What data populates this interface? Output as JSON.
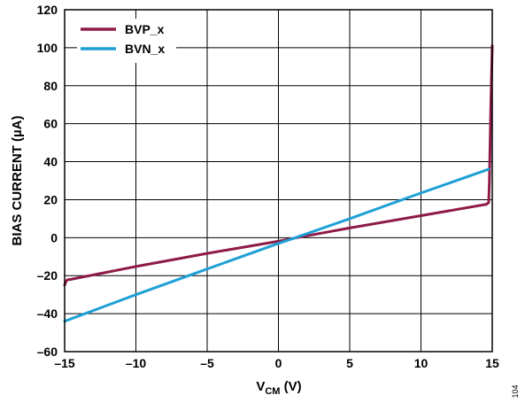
{
  "chart_data": {
    "type": "line",
    "xlabel_main": "V",
    "xlabel_sub": "CM",
    "xlabel_unit": " (V)",
    "ylabel": "BIAS CURRENT (µA)",
    "xlim": [
      -15,
      15
    ],
    "ylim": [
      -60,
      120
    ],
    "xticks": [
      -15,
      -10,
      -5,
      0,
      5,
      10,
      15
    ],
    "xtick_labels": [
      "–15",
      "–10",
      "–5",
      "0",
      "5",
      "10",
      "15"
    ],
    "yticks": [
      -60,
      -40,
      -20,
      0,
      20,
      40,
      60,
      80,
      100,
      120
    ],
    "ytick_labels": [
      "–60",
      "–40",
      "–20",
      "0",
      "20",
      "40",
      "60",
      "80",
      "100",
      "120"
    ],
    "grid": true,
    "legend_position": "top-left",
    "series": [
      {
        "name": "BVP_x",
        "color": "#8e1a47",
        "x": [
          -15.0,
          -14.9,
          -14.8,
          -14.6,
          -10,
          -5,
          0,
          1.3,
          5,
          10,
          14.6,
          14.75,
          14.8,
          14.9,
          15.0
        ],
        "y": [
          -25,
          -23,
          -22.2,
          -22,
          -15.2,
          -8.3,
          -1.9,
          0,
          5.1,
          11.6,
          17.6,
          18.5,
          30,
          70,
          101
        ]
      },
      {
        "name": "BVN_x",
        "color": "#1ea0d6",
        "x": [
          -15,
          -10,
          -5,
          0,
          1.2,
          5,
          10,
          14.75
        ],
        "y": [
          -44,
          -30,
          -16.5,
          -3,
          0,
          10,
          23.5,
          36
        ]
      }
    ]
  },
  "figure_id": "104"
}
